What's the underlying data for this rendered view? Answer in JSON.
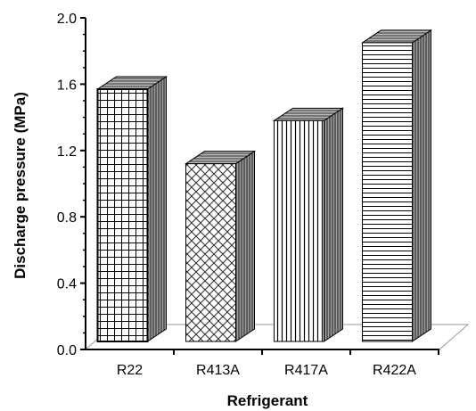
{
  "chart_data": {
    "type": "bar",
    "title": "",
    "xlabel": "Refrigerant",
    "ylabel": "Discharge pressure (MPa)",
    "categories": [
      "R22",
      "R413A",
      "R417A",
      "R422A"
    ],
    "values": [
      1.57,
      1.12,
      1.38,
      1.85
    ],
    "ylim": [
      0,
      2.0
    ],
    "yticks": [
      "0.0",
      "0.4",
      "0.8",
      "1.2",
      "1.6",
      "2.0"
    ],
    "grid": false,
    "legend": "none",
    "style": "3d-hatched-bars",
    "bar_patterns": [
      "grid",
      "diamond",
      "vertical",
      "horizontal"
    ],
    "colors": {
      "ink": "#000000",
      "background": "#ffffff",
      "bar_fill": "#ffffff"
    }
  }
}
